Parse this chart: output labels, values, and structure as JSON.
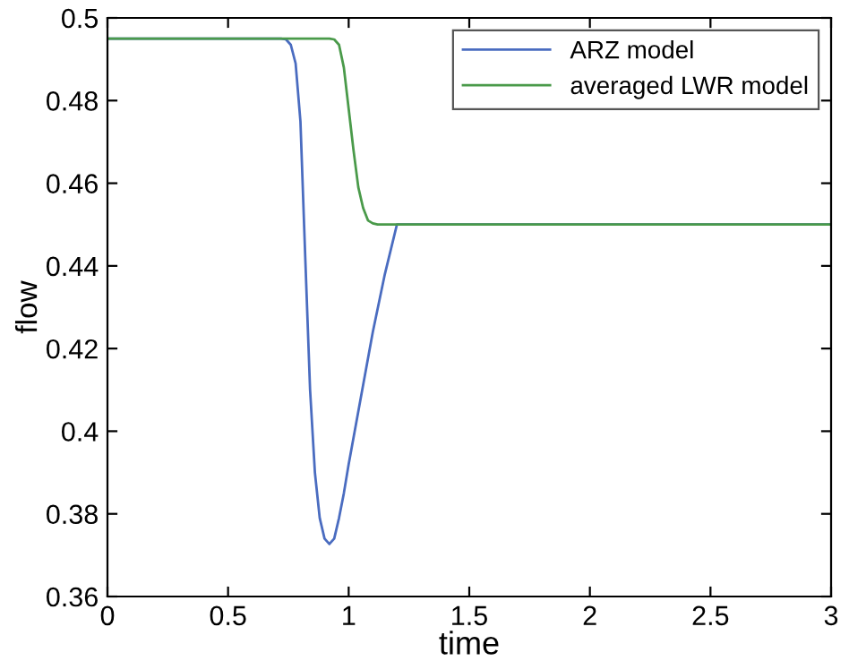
{
  "chart_data": {
    "type": "line",
    "xlabel": "time",
    "ylabel": "flow",
    "xlim": [
      0,
      3
    ],
    "ylim": [
      0.36,
      0.5
    ],
    "xticks": [
      0,
      0.5,
      1,
      1.5,
      2,
      2.5,
      3
    ],
    "yticks": [
      0.36,
      0.38,
      0.4,
      0.42,
      0.44,
      0.46,
      0.48,
      0.5
    ],
    "grid": false,
    "legend": "top right",
    "marker": "none",
    "line_style": "solid",
    "series": [
      {
        "name": "ARZ model",
        "color": "#4a6cc0",
        "x": [
          0,
          0.5,
          0.72,
          0.74,
          0.76,
          0.78,
          0.8,
          0.82,
          0.84,
          0.86,
          0.88,
          0.9,
          0.92,
          0.94,
          0.96,
          0.98,
          1.0,
          1.05,
          1.1,
          1.15,
          1.2,
          2,
          3
        ],
        "values": [
          0.495,
          0.495,
          0.495,
          0.4948,
          0.4935,
          0.489,
          0.475,
          0.442,
          0.41,
          0.39,
          0.379,
          0.374,
          0.3727,
          0.374,
          0.379,
          0.385,
          0.392,
          0.408,
          0.424,
          0.438,
          0.45,
          0.45,
          0.45
        ]
      },
      {
        "name": "averaged LWR model",
        "color": "#4a9a4a",
        "x": [
          0,
          0.5,
          0.92,
          0.94,
          0.96,
          0.98,
          1.0,
          1.02,
          1.04,
          1.06,
          1.08,
          1.1,
          1.12,
          2,
          3
        ],
        "values": [
          0.495,
          0.495,
          0.495,
          0.4948,
          0.4935,
          0.488,
          0.478,
          0.468,
          0.459,
          0.454,
          0.451,
          0.4503,
          0.45,
          0.45,
          0.45
        ]
      }
    ]
  }
}
